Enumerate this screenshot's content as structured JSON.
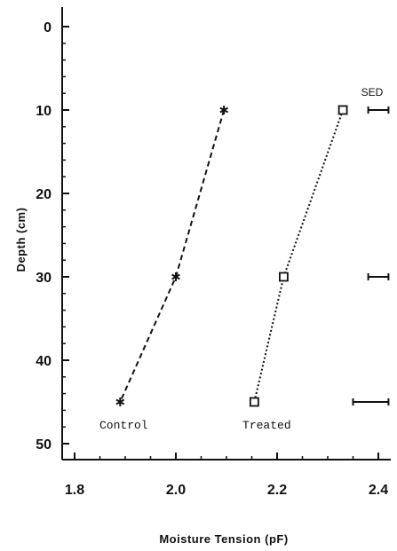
{
  "chart_data": {
    "type": "line",
    "xlabel": "Moisture Tension (pF)",
    "ylabel": "Depth (cm)",
    "xlim": [
      1.8,
      2.4
    ],
    "ylim": [
      0,
      50
    ],
    "y_inverted": true,
    "x_ticks": [
      1.8,
      2.0,
      2.2,
      2.4
    ],
    "x_tick_labels": [
      "1.8",
      "2.0",
      "2.2",
      "2.4"
    ],
    "y_ticks": [
      0,
      10,
      20,
      30,
      40,
      50
    ],
    "y_tick_labels": [
      "0",
      "10",
      "20",
      "30",
      "40",
      "50"
    ],
    "grid": false,
    "series": [
      {
        "name": "Control",
        "marker": "asterisk",
        "line_style": "dashed",
        "points": [
          {
            "x": 2.095,
            "y": 10
          },
          {
            "x": 2.0,
            "y": 30
          },
          {
            "x": 1.89,
            "y": 45
          }
        ]
      },
      {
        "name": "Treated",
        "marker": "square",
        "line_style": "dotted",
        "points": [
          {
            "x": 2.33,
            "y": 10
          },
          {
            "x": 2.213,
            "y": 30
          },
          {
            "x": 2.155,
            "y": 45
          }
        ]
      }
    ],
    "sed": {
      "label": "SED",
      "bars": [
        {
          "depth": 10,
          "x_start": 2.38,
          "x_end": 2.42
        },
        {
          "depth": 30,
          "x_start": 2.38,
          "x_end": 2.42
        },
        {
          "depth": 45,
          "x_start": 2.35,
          "x_end": 2.42
        }
      ]
    }
  },
  "colors": {
    "ink": "#111111",
    "background": "#ffffff"
  }
}
